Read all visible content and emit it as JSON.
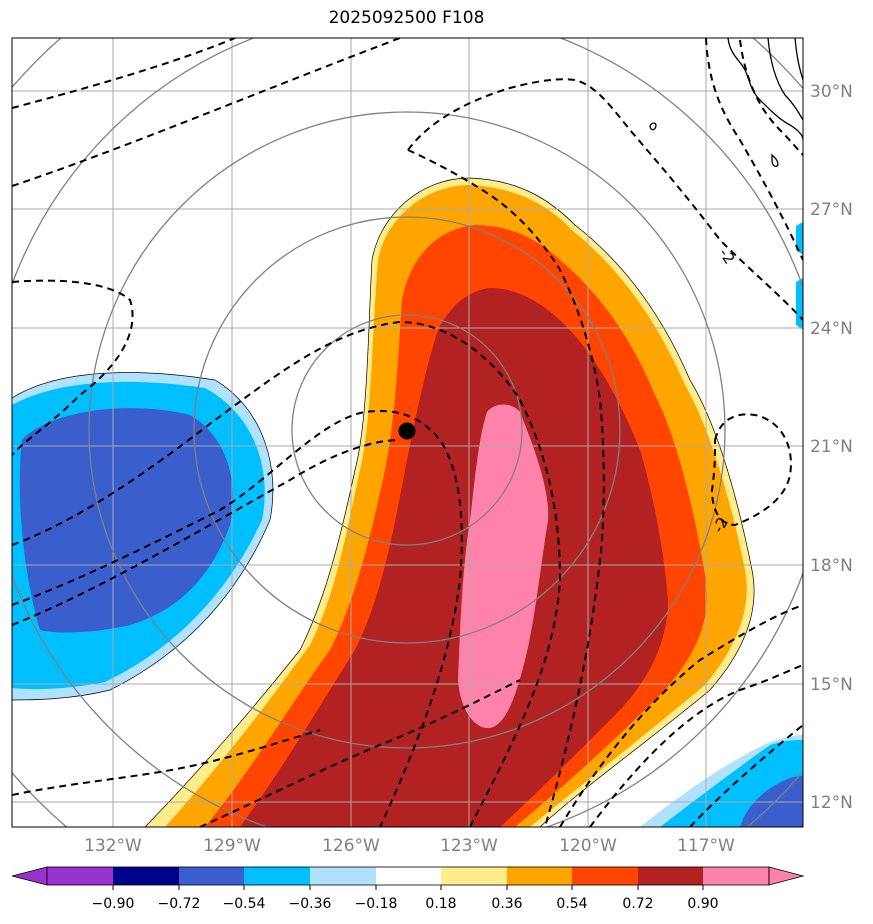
{
  "title": "2025092500 F108",
  "map": {
    "lon_labels": [
      "132°W",
      "129°W",
      "126°W",
      "123°W",
      "120°W",
      "117°W"
    ],
    "lat_labels": [
      "30°N",
      "27°N",
      "24°N",
      "21°N",
      "18°N",
      "15°N",
      "12°N"
    ],
    "storm_center": {
      "lon": -124.5,
      "lat": 21.3
    },
    "contour_labels": [
      "-2",
      "-2"
    ],
    "range_rings": 5,
    "gridlines": true
  },
  "colorbar": {
    "extend": "both",
    "ticks": [
      "−0.90",
      "−0.72",
      "−0.54",
      "−0.36",
      "−0.18",
      "0.18",
      "0.36",
      "0.54",
      "0.72",
      "0.90"
    ],
    "colors": [
      "#9a32cd",
      "#00008b",
      "#3a5fcd",
      "#00bfff",
      "#b0e2ff",
      "#ffffff",
      "#ffec8b",
      "#ffa500",
      "#ff4500",
      "#b22222",
      "#ff82ab"
    ]
  },
  "colors": {
    "grid": "#aaaaaa",
    "ring": "#808080",
    "tick_label": "#808080"
  }
}
